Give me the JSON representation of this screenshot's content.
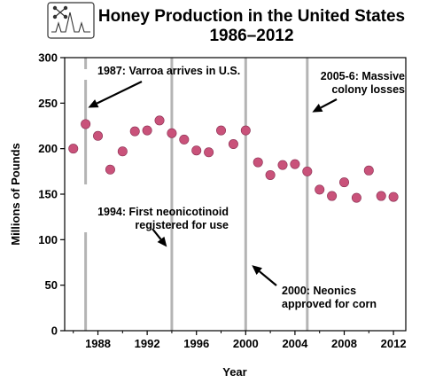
{
  "chart_data": {
    "type": "scatter",
    "title": [
      "Honey Production in the United States",
      "1986–2012"
    ],
    "xlabel": "Year",
    "ylabel": "Millions of Pounds",
    "xlim": [
      1985.3,
      2013.0
    ],
    "ylim": [
      0,
      300
    ],
    "x_ticks": [
      1988,
      1992,
      1996,
      2000,
      2004,
      2008,
      2012
    ],
    "y_ticks": [
      0,
      50,
      100,
      150,
      200,
      250,
      300
    ],
    "marker_color": "#c9527a",
    "event_line_color": "#b4b4b4",
    "points": [
      {
        "x": 1986,
        "y": 200
      },
      {
        "x": 1987,
        "y": 227
      },
      {
        "x": 1988,
        "y": 214
      },
      {
        "x": 1989,
        "y": 177
      },
      {
        "x": 1990,
        "y": 197
      },
      {
        "x": 1991,
        "y": 219
      },
      {
        "x": 1992,
        "y": 220
      },
      {
        "x": 1993,
        "y": 231
      },
      {
        "x": 1994,
        "y": 217
      },
      {
        "x": 1995,
        "y": 210
      },
      {
        "x": 1996,
        "y": 198
      },
      {
        "x": 1997,
        "y": 196
      },
      {
        "x": 1998,
        "y": 220
      },
      {
        "x": 1999,
        "y": 205
      },
      {
        "x": 2000,
        "y": 220
      },
      {
        "x": 2001,
        "y": 185
      },
      {
        "x": 2002,
        "y": 171
      },
      {
        "x": 2003,
        "y": 182
      },
      {
        "x": 2004,
        "y": 183
      },
      {
        "x": 2005,
        "y": 175
      },
      {
        "x": 2006,
        "y": 155
      },
      {
        "x": 2007,
        "y": 148
      },
      {
        "x": 2008,
        "y": 163
      },
      {
        "x": 2009,
        "y": 146
      },
      {
        "x": 2010,
        "y": 176
      },
      {
        "x": 2011,
        "y": 148
      },
      {
        "x": 2012,
        "y": 147
      }
    ],
    "event_lines": [
      1987,
      1994,
      2000,
      2005
    ],
    "annotations": [
      {
        "lines": [
          "1987: Varroa arrives in U.S."
        ],
        "arrow_to": {
          "x": 1987.2,
          "y": 245
        }
      },
      {
        "lines": [
          "1994: First neonicotinoid",
          "registered for use"
        ],
        "arrow_to": {
          "x": 1993.6,
          "y": 92
        }
      },
      {
        "lines": [
          "2000: Neonics",
          "approved for corn"
        ],
        "arrow_to": {
          "x": 2000.5,
          "y": 72
        }
      },
      {
        "lines": [
          "2005-6: Massive",
          "colony losses"
        ],
        "arrow_to": {
          "x": 2005.4,
          "y": 240
        }
      }
    ]
  },
  "icon": "line-chart-icon"
}
